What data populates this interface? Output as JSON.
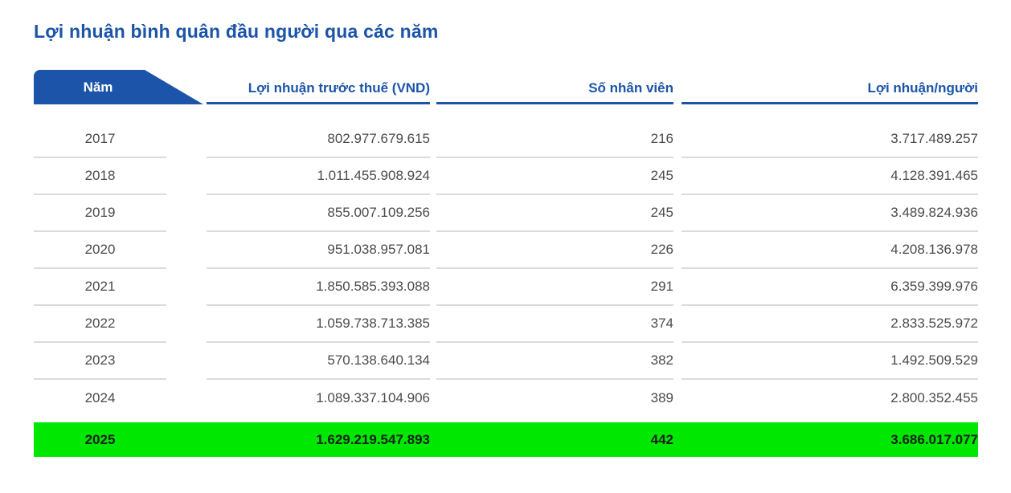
{
  "title": "Lợi nhuận bình quân đầu người qua các năm",
  "chart_data": {
    "type": "table",
    "title": "Lợi nhuận bình quân đầu người qua các năm",
    "columns": [
      "Năm",
      "Lợi nhuận trước thuế (VND)",
      "Số nhân viên",
      "Lợi nhuận/người"
    ],
    "rows": [
      {
        "year": "2017",
        "profit_before_tax_vnd": "802.977.679.615",
        "employees": "216",
        "profit_per_person": "3.717.489.257",
        "highlighted": false
      },
      {
        "year": "2018",
        "profit_before_tax_vnd": "1.011.455.908.924",
        "employees": "245",
        "profit_per_person": "4.128.391.465",
        "highlighted": false
      },
      {
        "year": "2019",
        "profit_before_tax_vnd": "855.007.109.256",
        "employees": "245",
        "profit_per_person": "3.489.824.936",
        "highlighted": false
      },
      {
        "year": "2020",
        "profit_before_tax_vnd": "951.038.957.081",
        "employees": "226",
        "profit_per_person": "4.208.136.978",
        "highlighted": false
      },
      {
        "year": "2021",
        "profit_before_tax_vnd": "1.850.585.393.088",
        "employees": "291",
        "profit_per_person": "6.359.399.976",
        "highlighted": false
      },
      {
        "year": "2022",
        "profit_before_tax_vnd": "1.059.738.713.385",
        "employees": "374",
        "profit_per_person": "2.833.525.972",
        "highlighted": false
      },
      {
        "year": "2023",
        "profit_before_tax_vnd": "570.138.640.134",
        "employees": "382",
        "profit_per_person": "1.492.509.529",
        "highlighted": false
      },
      {
        "year": "2024",
        "profit_before_tax_vnd": "1.089.337.104.906",
        "employees": "389",
        "profit_per_person": "2.800.352.455",
        "highlighted": false
      },
      {
        "year": "2025",
        "profit_before_tax_vnd": "1.629.219.547.893",
        "employees": "442",
        "profit_per_person": "3.686.017.077",
        "highlighted": true
      }
    ]
  },
  "colors": {
    "accent_blue": "#1B54A8",
    "highlight_green": "#00E701",
    "body_text": "#4B4B4B",
    "separator": "#DBDBDB"
  }
}
